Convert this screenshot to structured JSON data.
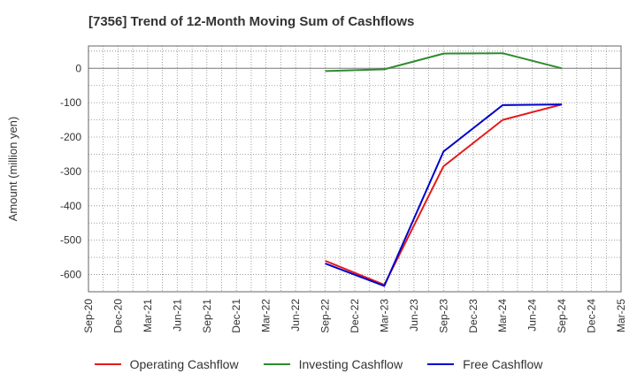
{
  "chart_data": {
    "type": "line",
    "title": "[7356]  Trend of 12-Month Moving Sum of Cashflows",
    "ylabel": "Amount (million yen)",
    "xlabel": "",
    "categories": [
      "Sep-20",
      "Dec-20",
      "Mar-21",
      "Jun-21",
      "Sep-21",
      "Dec-21",
      "Mar-22",
      "Jun-22",
      "Sep-22",
      "Dec-22",
      "Mar-23",
      "Jun-23",
      "Sep-23",
      "Dec-23",
      "Mar-24",
      "Jun-24",
      "Sep-24",
      "Dec-24",
      "Mar-25"
    ],
    "ylim": [
      -650,
      65
    ],
    "yticks": [
      0,
      -100,
      -200,
      -300,
      -400,
      -500,
      -600
    ],
    "ytick_labels": [
      "0",
      "-100",
      "-200",
      "-300",
      "-400",
      "-500",
      "-600"
    ],
    "grid": true,
    "legend_position": "bottom",
    "series": [
      {
        "name": "Operating Cashflow",
        "color": "#e41a1c",
        "values": [
          null,
          null,
          null,
          null,
          null,
          null,
          null,
          null,
          -560,
          null,
          -630,
          null,
          -285,
          null,
          -150,
          null,
          -105,
          null,
          null
        ]
      },
      {
        "name": "Investing Cashflow",
        "color": "#2e8b2e",
        "values": [
          null,
          null,
          null,
          null,
          null,
          null,
          null,
          null,
          -8,
          null,
          -3,
          null,
          43,
          null,
          44,
          null,
          0,
          null,
          null
        ]
      },
      {
        "name": "Free Cashflow",
        "color": "#0000cc",
        "values": [
          null,
          null,
          null,
          null,
          null,
          null,
          null,
          null,
          -568,
          null,
          -633,
          null,
          -242,
          null,
          -107,
          null,
          -105,
          null,
          null
        ]
      }
    ]
  }
}
